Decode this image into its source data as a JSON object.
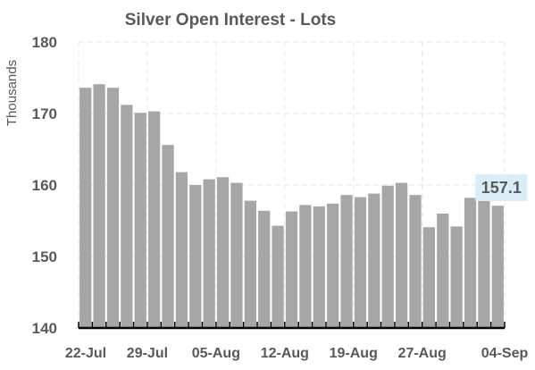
{
  "chart_data": {
    "type": "bar",
    "title": "Silver Open Interest - Lots",
    "ylabel": "Thousands",
    "xlabel": "",
    "ylim": [
      140,
      180
    ],
    "yticks": [
      "140",
      "150",
      "160",
      "170",
      "180"
    ],
    "xtick_labels": [
      {
        "label": "22-Jul",
        "index": 0
      },
      {
        "label": "29-Jul",
        "index": 5
      },
      {
        "label": "05-Aug",
        "index": 10
      },
      {
        "label": "12-Aug",
        "index": 15
      },
      {
        "label": "19-Aug",
        "index": 20
      },
      {
        "label": "27-Aug",
        "index": 25
      },
      {
        "label": "04-Sep",
        "index": 31
      }
    ],
    "values": [
      173.6,
      174.1,
      173.6,
      171.2,
      170.1,
      170.3,
      165.6,
      161.8,
      160.0,
      160.8,
      161.1,
      160.3,
      157.8,
      156.4,
      154.3,
      156.3,
      157.2,
      157.0,
      157.4,
      158.6,
      158.3,
      158.8,
      159.9,
      160.3,
      158.6,
      154.1,
      156.0,
      154.2,
      158.2,
      157.9,
      157.1
    ],
    "data_label": {
      "text": "157.1",
      "index": 30
    },
    "grid": true,
    "colors": {
      "bar": "#a6a6a6",
      "label_bg": "#d9eef8",
      "text": "#595959",
      "grid": "#e6e6e6"
    }
  }
}
